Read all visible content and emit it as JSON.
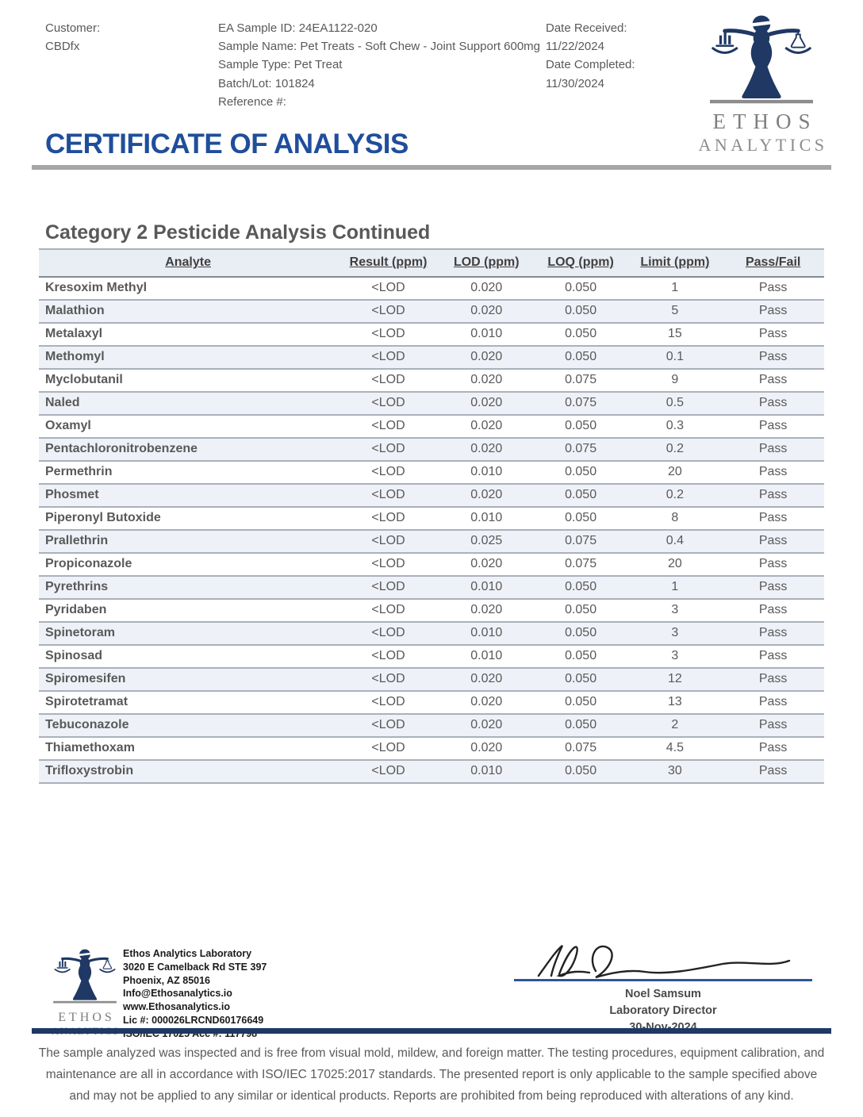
{
  "header": {
    "customer_label": "Customer:",
    "customer_name": "CBDfx",
    "sample_lines": [
      "EA Sample ID: 24EA1122-020",
      "Sample Name: Pet Treats - Soft Chew - Joint Support 600mg",
      "Sample Type: Pet Treat",
      "Batch/Lot: 101824",
      "Reference #:"
    ],
    "date_lines": [
      "Date Received:",
      "11/22/2024",
      "Date Completed:",
      "11/30/2024"
    ]
  },
  "logo": {
    "name_top": "ETHOS",
    "name_bottom": "ANALYTICS",
    "icon": "lady-justice-scales-icon",
    "navy": "#1f3864",
    "gray": "#8c8c8c"
  },
  "title": "CERTIFICATE OF ANALYSIS",
  "section": {
    "title": "Category 2 Pesticide Analysis Continued"
  },
  "table": {
    "columns": [
      "Analyte",
      "Result (ppm)",
      "LOD (ppm)",
      "LOQ (ppm)",
      "Limit (ppm)",
      "Pass/Fail"
    ],
    "rows": [
      [
        "Kresoxim Methyl",
        "<LOD",
        "0.020",
        "0.050",
        "1",
        "Pass"
      ],
      [
        "Malathion",
        "<LOD",
        "0.020",
        "0.050",
        "5",
        "Pass"
      ],
      [
        "Metalaxyl",
        "<LOD",
        "0.010",
        "0.050",
        "15",
        "Pass"
      ],
      [
        "Methomyl",
        "<LOD",
        "0.020",
        "0.050",
        "0.1",
        "Pass"
      ],
      [
        "Myclobutanil",
        "<LOD",
        "0.020",
        "0.075",
        "9",
        "Pass"
      ],
      [
        "Naled",
        "<LOD",
        "0.020",
        "0.075",
        "0.5",
        "Pass"
      ],
      [
        "Oxamyl",
        "<LOD",
        "0.020",
        "0.050",
        "0.3",
        "Pass"
      ],
      [
        "Pentachloronitrobenzene",
        "<LOD",
        "0.020",
        "0.075",
        "0.2",
        "Pass"
      ],
      [
        "Permethrin",
        "<LOD",
        "0.010",
        "0.050",
        "20",
        "Pass"
      ],
      [
        "Phosmet",
        "<LOD",
        "0.020",
        "0.050",
        "0.2",
        "Pass"
      ],
      [
        "Piperonyl Butoxide",
        "<LOD",
        "0.010",
        "0.050",
        "8",
        "Pass"
      ],
      [
        "Prallethrin",
        "<LOD",
        "0.025",
        "0.075",
        "0.4",
        "Pass"
      ],
      [
        "Propiconazole",
        "<LOD",
        "0.020",
        "0.075",
        "20",
        "Pass"
      ],
      [
        "Pyrethrins",
        "<LOD",
        "0.010",
        "0.050",
        "1",
        "Pass"
      ],
      [
        "Pyridaben",
        "<LOD",
        "0.020",
        "0.050",
        "3",
        "Pass"
      ],
      [
        "Spinetoram",
        "<LOD",
        "0.010",
        "0.050",
        "3",
        "Pass"
      ],
      [
        "Spinosad",
        "<LOD",
        "0.010",
        "0.050",
        "3",
        "Pass"
      ],
      [
        "Spiromesifen",
        "<LOD",
        "0.020",
        "0.050",
        "12",
        "Pass"
      ],
      [
        "Spirotetramat",
        "<LOD",
        "0.020",
        "0.050",
        "13",
        "Pass"
      ],
      [
        "Tebuconazole",
        "<LOD",
        "0.020",
        "0.050",
        "2",
        "Pass"
      ],
      [
        "Thiamethoxam",
        "<LOD",
        "0.020",
        "0.075",
        "4.5",
        "Pass"
      ],
      [
        "Trifloxystrobin",
        "<LOD",
        "0.010",
        "0.050",
        "30",
        "Pass"
      ]
    ]
  },
  "footer": {
    "lab_lines": [
      "Ethos Analytics Laboratory",
      "3020 E Camelback Rd STE 397",
      "Phoenix, AZ 85016",
      "Info@Ethosanalytics.io",
      "www.Ethosanalytics.io",
      "Lic #: 000026LRCND60176649",
      "ISO/IEC 17025 Acc #: 117798"
    ],
    "signer": {
      "name": "Noel Samsum",
      "title": "Laboratory Director",
      "date": "30-Nov-2024"
    },
    "disclaimer": "The sample analyzed was inspected and is free from visual mold, mildew, and foreign matter. The testing procedures, equipment calibration, and maintenance are all in accordance with ISO/IEC 17025:2017 standards. The presented report is only applicable to the sample specified above and may not be applied to any similar or identical products. Reports are prohibited from being reproduced with alterations of any kind."
  },
  "colors": {
    "title_blue": "#1f4e9b",
    "navy": "#1f3864",
    "gray_rule": "#a6a6a6",
    "body_gray": "#595959",
    "sig_line_blue": "#2e5696",
    "row_alt": "#eef2f8",
    "header_bg": "#e9edf4"
  }
}
